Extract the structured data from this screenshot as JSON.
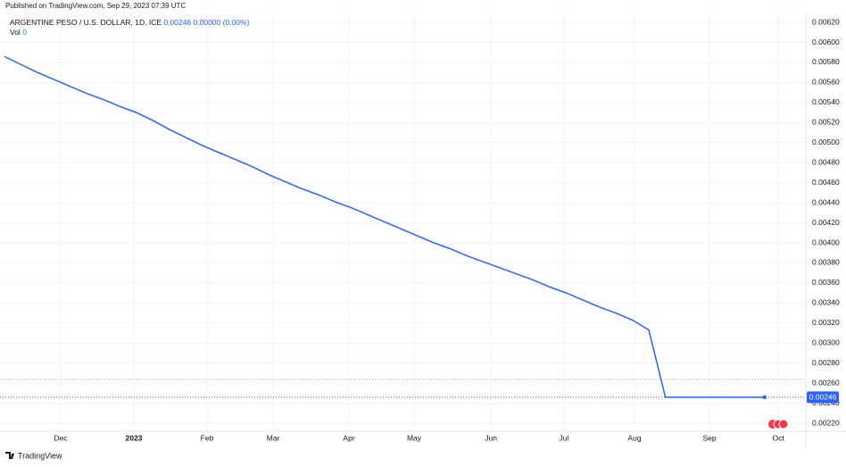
{
  "publisher": "Published on TradingView.com, Sep 29, 2023 07:39 UTC",
  "brand": "TradingView",
  "chart_data": {
    "type": "line",
    "legend": {
      "symbol": "ARGENTINE PESO / U.S. DOLLAR, 1D, ICE",
      "price": "0.00246",
      "change": "0.00000 (0.00%)",
      "volume_label": "Vol",
      "volume": "0"
    },
    "values": [
      0.00586,
      0.00578,
      0.0057,
      0.00563,
      0.00556,
      0.00549,
      0.00543,
      0.00536,
      0.0053,
      0.00522,
      0.00513,
      0.00505,
      0.00497,
      0.0049,
      0.00483,
      0.00476,
      0.00468,
      0.00461,
      0.00454,
      0.00448,
      0.00441,
      0.00435,
      0.00428,
      0.00421,
      0.00414,
      0.00407,
      0.004,
      0.00394,
      0.00387,
      0.00381,
      0.00375,
      0.00369,
      0.00363,
      0.00356,
      0.0035,
      0.00343,
      0.00336,
      0.0033,
      0.00323,
      0.00313,
      0.00246,
      0.00246,
      0.00246,
      0.00246,
      0.00246,
      0.00246,
      0.00246
    ],
    "color": "#2962ff",
    "last_value_label": "0.00246",
    "reference_lines": [
      {
        "value": 0.00264,
        "color": "#f7a1a8"
      }
    ],
    "xlim": [
      -0.27,
      48.5
    ],
    "xticks": [
      {
        "value": 3.4,
        "label": "Dec"
      },
      {
        "value": 7.83,
        "label": "2023"
      },
      {
        "value": 12.26,
        "label": "Feb"
      },
      {
        "value": 16.26,
        "label": "Mar"
      },
      {
        "value": 20.85,
        "label": "Apr"
      },
      {
        "value": 24.79,
        "label": "May"
      },
      {
        "value": 29.44,
        "label": "Jun"
      },
      {
        "value": 33.86,
        "label": "Jul"
      },
      {
        "value": 38.13,
        "label": "Aug"
      },
      {
        "value": 42.67,
        "label": "Sep"
      },
      {
        "value": 46.83,
        "label": "Oct"
      }
    ],
    "ylim": [
      0.00212,
      0.00629
    ],
    "yticks": [
      {
        "value": 0.0022,
        "label": "0.00220"
      },
      {
        "value": 0.0024,
        "label": "0.00240"
      },
      {
        "value": 0.0026,
        "label": "0.00260"
      },
      {
        "value": 0.0028,
        "label": "0.00280"
      },
      {
        "value": 0.003,
        "label": "0.00300"
      },
      {
        "value": 0.0032,
        "label": "0.00320"
      },
      {
        "value": 0.0034,
        "label": "0.00340"
      },
      {
        "value": 0.0036,
        "label": "0.00360"
      },
      {
        "value": 0.0038,
        "label": "0.00380"
      },
      {
        "value": 0.004,
        "label": "0.00400"
      },
      {
        "value": 0.0042,
        "label": "0.00420"
      },
      {
        "value": 0.0044,
        "label": "0.00440"
      },
      {
        "value": 0.0046,
        "label": "0.00460"
      },
      {
        "value": 0.0048,
        "label": "0.00480"
      },
      {
        "value": 0.005,
        "label": "0.00500"
      },
      {
        "value": 0.0052,
        "label": "0.00520"
      },
      {
        "value": 0.0054,
        "label": "0.00540"
      },
      {
        "value": 0.0056,
        "label": "0.00560"
      },
      {
        "value": 0.0058,
        "label": "0.00580"
      },
      {
        "value": 0.006,
        "label": "0.00600"
      },
      {
        "value": 0.0062,
        "label": "0.00620"
      }
    ],
    "grid": true
  }
}
